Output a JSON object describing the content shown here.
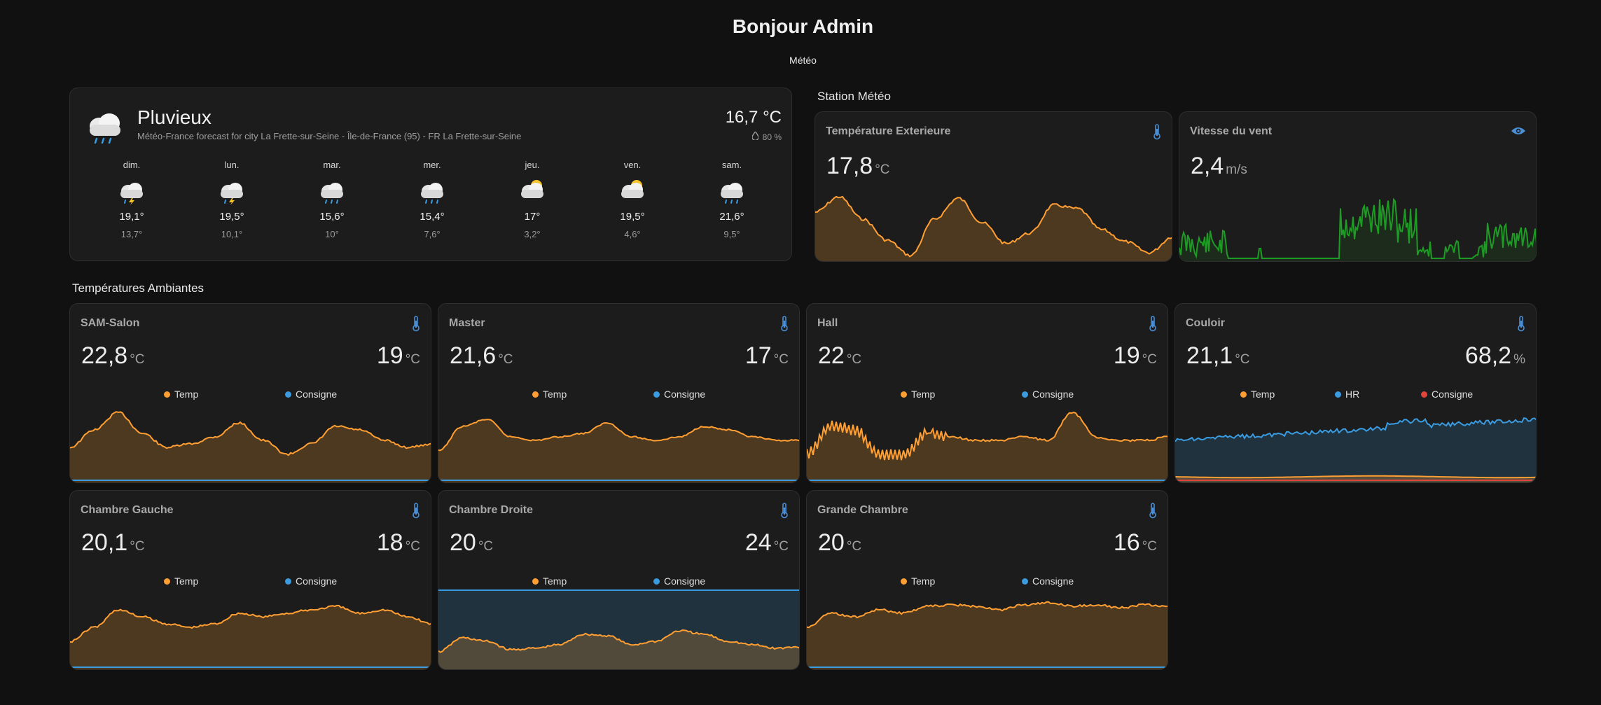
{
  "header": {
    "title": "Bonjour Admin",
    "view_tab": "Météo"
  },
  "colors": {
    "temp": "#ff9f33",
    "consigne": "#3a9be0",
    "hr": "#3a9be0",
    "consigne_red": "#e0453c",
    "wind": "#1e9b24",
    "icon_blue": "#4a90d9"
  },
  "weather": {
    "condition": "Pluvieux",
    "subtitle": "Météo-France forecast for city La Frette-sur-Seine - Île-de-France (95) - FR La Frette-sur-Seine",
    "temperature": "16,7 °C",
    "humidity": "80 %",
    "icon": "rain-cloud-icon",
    "forecast": [
      {
        "day": "dim.",
        "icon": "storm-cloud-icon",
        "high": "19,1°",
        "low": "13,7°"
      },
      {
        "day": "lun.",
        "icon": "storm-cloud-icon",
        "high": "19,5°",
        "low": "10,1°"
      },
      {
        "day": "mar.",
        "icon": "rain-cloud-icon",
        "high": "15,6°",
        "low": "10°"
      },
      {
        "day": "mer.",
        "icon": "rain-cloud-icon",
        "high": "15,4°",
        "low": "7,6°"
      },
      {
        "day": "jeu.",
        "icon": "partly-sunny-icon",
        "high": "17°",
        "low": "3,2°"
      },
      {
        "day": "ven.",
        "icon": "partly-sunny-icon",
        "high": "19,5°",
        "low": "4,6°"
      },
      {
        "day": "sam.",
        "icon": "rain-cloud-icon",
        "high": "21,6°",
        "low": "9,5°"
      }
    ]
  },
  "station": {
    "title": "Station Météo",
    "outside": {
      "name": "Température Exterieure",
      "value": "17,8",
      "unit": "°C",
      "icon": "thermometer-icon"
    },
    "wind": {
      "name": "Vitesse du vent",
      "value": "2,4",
      "unit": "m/s",
      "icon": "eye-icon"
    }
  },
  "rooms_title": "Températures Ambiantes",
  "legend": {
    "temp": "Temp",
    "consigne": "Consigne",
    "hr": "HR"
  },
  "rooms": [
    {
      "name": "SAM-Salon",
      "value": "22,8",
      "unit": "°C",
      "secondary": "19",
      "secondary_unit": "°C"
    },
    {
      "name": "Master",
      "value": "21,6",
      "unit": "°C",
      "secondary": "17",
      "secondary_unit": "°C"
    },
    {
      "name": "Hall",
      "value": "22",
      "unit": "°C",
      "secondary": "19",
      "secondary_unit": "°C"
    },
    {
      "name": "Couloir",
      "value": "21,1",
      "unit": "°C",
      "secondary": "68,2",
      "secondary_unit": "%"
    },
    {
      "name": "Chambre Gauche",
      "value": "20,1",
      "unit": "°C",
      "secondary": "18",
      "secondary_unit": "°C"
    },
    {
      "name": "Chambre Droite",
      "value": "20",
      "unit": "°C",
      "secondary": "24",
      "secondary_unit": "°C"
    },
    {
      "name": "Grande Chambre",
      "value": "20",
      "unit": "°C",
      "secondary": "16",
      "secondary_unit": "°C"
    }
  ]
}
